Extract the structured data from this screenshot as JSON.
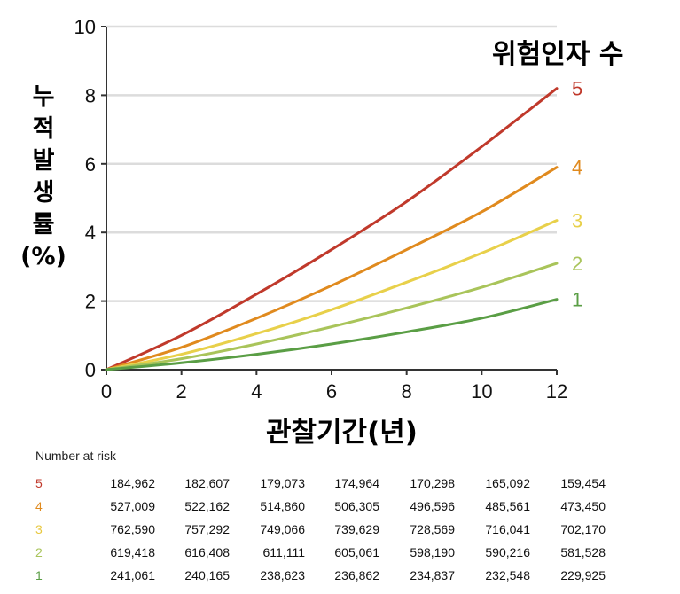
{
  "chart_data": {
    "type": "line",
    "xlabel": "관찰기간(년)",
    "ylabel": "누적발생률(%)",
    "ylabel_chars": [
      "누",
      "적",
      "발",
      "생",
      "률",
      "(%)"
    ],
    "legend_title": "위험인자 수",
    "xlim": [
      0,
      12
    ],
    "ylim": [
      0,
      10
    ],
    "xticks": [
      "0",
      "2",
      "4",
      "6",
      "8",
      "10",
      "12"
    ],
    "yticks": [
      "0",
      "2",
      "4",
      "6",
      "8",
      "10"
    ],
    "grid": "horizontal",
    "x": [
      0,
      2,
      4,
      6,
      8,
      10,
      12
    ],
    "series": [
      {
        "name": "5",
        "color": "#c0392b",
        "values": [
          0,
          1.0,
          2.2,
          3.5,
          4.9,
          6.5,
          8.2
        ]
      },
      {
        "name": "4",
        "color": "#e08a1e",
        "values": [
          0,
          0.65,
          1.5,
          2.45,
          3.5,
          4.6,
          5.9
        ]
      },
      {
        "name": "3",
        "color": "#e8d04a",
        "values": [
          0,
          0.45,
          1.05,
          1.75,
          2.55,
          3.4,
          4.35
        ]
      },
      {
        "name": "2",
        "color": "#a9c45a",
        "values": [
          0,
          0.32,
          0.75,
          1.25,
          1.8,
          2.4,
          3.1
        ]
      },
      {
        "name": "1",
        "color": "#5a9e45",
        "values": [
          0,
          0.2,
          0.45,
          0.75,
          1.1,
          1.5,
          2.05
        ]
      }
    ]
  },
  "risk_table": {
    "title": "Number at risk",
    "rows": [
      {
        "key": "5",
        "color": "#c0392b",
        "values": [
          "184,962",
          "182,607",
          "179,073",
          "174,964",
          "170,298",
          "165,092",
          "159,454"
        ]
      },
      {
        "key": "4",
        "color": "#e08a1e",
        "values": [
          "527,009",
          "522,162",
          "514,860",
          "506,305",
          "496,596",
          "485,561",
          "473,450"
        ]
      },
      {
        "key": "3",
        "color": "#e8c840",
        "values": [
          "762,590",
          "757,292",
          "749,066",
          "739,629",
          "728,569",
          "716,041",
          "702,170"
        ]
      },
      {
        "key": "2",
        "color": "#a9c45a",
        "values": [
          "619,418",
          "616,408",
          "611,111",
          "605,061",
          "598,190",
          "590,216",
          "581,528"
        ]
      },
      {
        "key": "1",
        "color": "#5a9e45",
        "values": [
          "241,061",
          "240,165",
          "238,623",
          "236,862",
          "234,837",
          "232,548",
          "229,925"
        ]
      }
    ]
  }
}
